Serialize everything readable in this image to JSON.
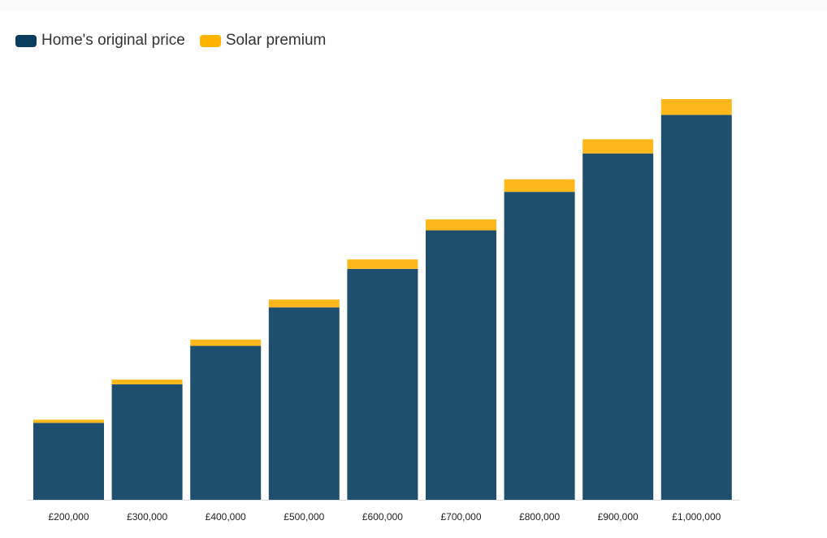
{
  "chart_data": {
    "type": "bar",
    "stacked": true,
    "categories": [
      "£200,000",
      "£300,000",
      "£400,000",
      "£500,000",
      "£600,000",
      "£700,000",
      "£800,000",
      "£900,000",
      "£1,000,000"
    ],
    "series": [
      {
        "name": "Home's original price",
        "color": "#1f4f6e",
        "legend_color": "#0b3d5e",
        "values": [
          200000,
          300000,
          400000,
          500000,
          600000,
          700000,
          800000,
          900000,
          1000000
        ]
      },
      {
        "name": "Solar premium",
        "color": "#ffb81c",
        "legend_color": "#ffb400",
        "values": [
          8200,
          12300,
          16400,
          20500,
          24600,
          28700,
          32800,
          36900,
          41000
        ]
      }
    ],
    "ylim": [
      0,
      1041000
    ],
    "grid": false,
    "legend_position": "top-left",
    "yaxis_visible": false
  }
}
